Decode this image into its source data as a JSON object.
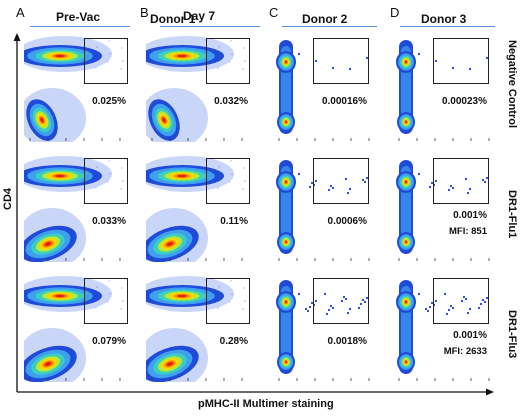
{
  "figure": {
    "panel_letters": [
      "A",
      "B",
      "C",
      "D"
    ],
    "titles": {
      "prevac": "Pre-Vac",
      "donor1": "Donor 1",
      "day7": "Day 7",
      "donor2": "Donor 2",
      "donor3": "Donor 3"
    },
    "row_labels": [
      "Negative Control",
      "DR1-Flu1",
      "DR1-Flu3"
    ],
    "y_axis_label": "CD4",
    "x_axis_label": "pMHC-II Multimer staining",
    "plots": [
      {
        "row": 0,
        "col": 0,
        "type": "broad",
        "percent": "0.025%",
        "mfi": ""
      },
      {
        "row": 0,
        "col": 1,
        "type": "broad",
        "percent": "0.032%",
        "mfi": ""
      },
      {
        "row": 0,
        "col": 2,
        "type": "narrow",
        "percent": "0.00016%",
        "mfi": ""
      },
      {
        "row": 0,
        "col": 3,
        "type": "narrow",
        "percent": "0.00023%",
        "mfi": ""
      },
      {
        "row": 1,
        "col": 0,
        "type": "broad",
        "percent": "0.033%",
        "mfi": ""
      },
      {
        "row": 1,
        "col": 1,
        "type": "broad",
        "percent": "0.11%",
        "mfi": ""
      },
      {
        "row": 1,
        "col": 2,
        "type": "narrow",
        "percent": "0.0006%",
        "mfi": ""
      },
      {
        "row": 1,
        "col": 3,
        "type": "narrow",
        "percent": "0.001%",
        "mfi": "MFI: 851"
      },
      {
        "row": 2,
        "col": 0,
        "type": "broad",
        "percent": "0.079%",
        "mfi": ""
      },
      {
        "row": 2,
        "col": 1,
        "type": "broad",
        "percent": "0.28%",
        "mfi": ""
      },
      {
        "row": 2,
        "col": 2,
        "type": "narrow",
        "percent": "0.0018%",
        "mfi": ""
      },
      {
        "row": 2,
        "col": 3,
        "type": "narrow",
        "percent": "0.001%",
        "mfi": "MFI: 2633"
      }
    ],
    "colors": {
      "title_rule": "#5a8fd0",
      "density_low": "#1f4bd8",
      "density_high": "#e8231a"
    }
  }
}
